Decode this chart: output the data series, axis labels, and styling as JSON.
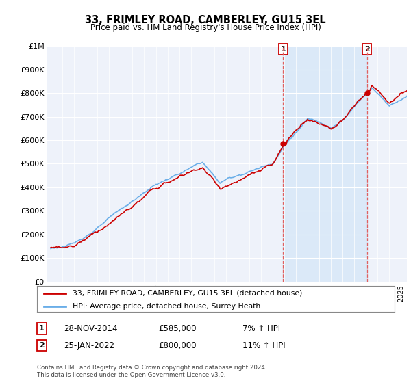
{
  "title": "33, FRIMLEY ROAD, CAMBERLEY, GU15 3EL",
  "subtitle": "Price paid vs. HM Land Registry's House Price Index (HPI)",
  "legend_line1": "33, FRIMLEY ROAD, CAMBERLEY, GU15 3EL (detached house)",
  "legend_line2": "HPI: Average price, detached house, Surrey Heath",
  "annotation1_date": "28-NOV-2014",
  "annotation1_price": "£585,000",
  "annotation1_hpi": "7% ↑ HPI",
  "annotation2_date": "25-JAN-2022",
  "annotation2_price": "£800,000",
  "annotation2_hpi": "11% ↑ HPI",
  "footer": "Contains HM Land Registry data © Crown copyright and database right 2024.\nThis data is licensed under the Open Government Licence v3.0.",
  "hpi_color": "#6aaee8",
  "hpi_fill_color": "#d8e8f8",
  "price_color": "#cc0000",
  "annotation_vline_color": "#e06060",
  "background_plot": "#eef2fa",
  "background_fig": "#ffffff",
  "ylim_min": 0,
  "ylim_max": 1000000,
  "ytick_vals": [
    0,
    100000,
    200000,
    300000,
    400000,
    500000,
    600000,
    700000,
    800000,
    900000,
    1000000
  ],
  "ytick_labels": [
    "£0",
    "£100K",
    "£200K",
    "£300K",
    "£400K",
    "£500K",
    "£600K",
    "£700K",
    "£800K",
    "£900K",
    "£1M"
  ],
  "purchase1_year": 2014.91,
  "purchase1_price": 585000,
  "purchase2_year": 2022.07,
  "purchase2_price": 800000
}
